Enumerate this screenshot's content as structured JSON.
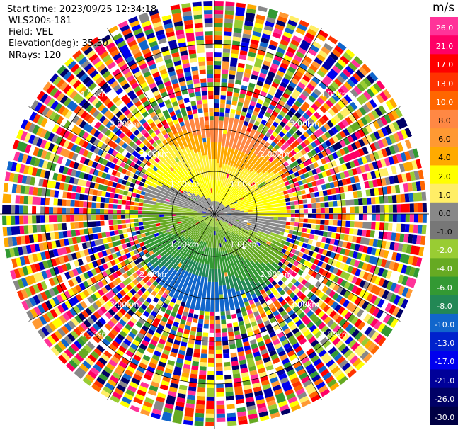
{
  "header": {
    "start_time": "Start time: 2023/09/25 12:34:18",
    "site": "WLS200s-181",
    "field": "Field: VEL",
    "elevation": "Elevation(deg): 35.30",
    "nrays": "NRays: 120"
  },
  "colorbar": {
    "unit": "m/s",
    "labels": [
      "26.0",
      "21.0",
      "17.0",
      "13.0",
      "10.0",
      "8.0",
      "6.0",
      "4.0",
      "2.0",
      "1.0",
      "0.0",
      "-1.0",
      "-2.0",
      "-4.0",
      "-6.0",
      "-8.0",
      "-10.0",
      "-13.0",
      "-17.0",
      "-21.0",
      "-26.0",
      "-30.0"
    ],
    "colors": [
      "#ff3399",
      "#ff0066",
      "#ff0000",
      "#ff3300",
      "#ff6600",
      "#ff8844",
      "#ff9933",
      "#ffaa00",
      "#ffff00",
      "#ffee66",
      "#888888",
      "#777777",
      "#99cc33",
      "#66aa22",
      "#339933",
      "#228855",
      "#1166cc",
      "#0022cc",
      "#0000ee",
      "#000099",
      "#000066",
      "#000044"
    ]
  },
  "chart_data": {
    "type": "heatmap",
    "projection": "PPI polar",
    "field": "VEL",
    "unit": "m/s",
    "nrays": 120,
    "elevation_deg": 35.3,
    "range_rings_km": [
      1.0,
      2.0,
      3.0,
      4.0
    ],
    "range_ring_labels": [
      "1.00km",
      "2.00km",
      "3.00km",
      "4.00km"
    ],
    "color_scale_min": -30.0,
    "color_scale_max": 26.0,
    "pattern": "Inner region: positive (yellow-orange) velocities to the north, near-zero gray band across center, negative (green-blue) to the south; outer region noisy/random"
  }
}
